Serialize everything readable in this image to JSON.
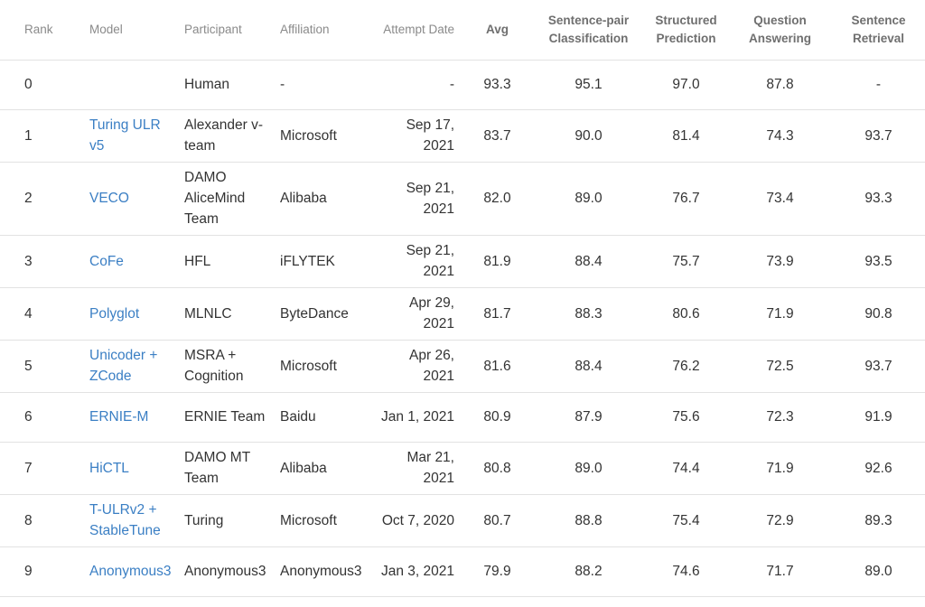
{
  "headers": {
    "rank": "Rank",
    "model": "Model",
    "participant": "Participant",
    "affiliation": "Affiliation",
    "attempt_date": "Attempt Date",
    "avg": "Avg",
    "spc_line1": "Sentence-pair",
    "spc_line2": "Classification",
    "sp_line1": "Structured",
    "sp_line2": "Prediction",
    "qa_line1": "Question",
    "qa_line2": "Answering",
    "sr_line1": "Sentence",
    "sr_line2": "Retrieval"
  },
  "rows": [
    {
      "rank": "0",
      "model": "",
      "participant": "Human",
      "affiliation": "-",
      "date": "-",
      "avg": "93.3",
      "spc": "95.1",
      "sp": "97.0",
      "qa": "87.8",
      "sr": "-"
    },
    {
      "rank": "1",
      "model": "Turing ULR v5",
      "participant": "Alexander v-team",
      "affiliation": "Microsoft",
      "date": "Sep 17, 2021",
      "avg": "83.7",
      "spc": "90.0",
      "sp": "81.4",
      "qa": "74.3",
      "sr": "93.7"
    },
    {
      "rank": "2",
      "model": "VECO",
      "participant": "DAMO AliceMind Team",
      "affiliation": "Alibaba",
      "date": "Sep 21, 2021",
      "avg": "82.0",
      "spc": "89.0",
      "sp": "76.7",
      "qa": "73.4",
      "sr": "93.3"
    },
    {
      "rank": "3",
      "model": "CoFe",
      "participant": "HFL",
      "affiliation": "iFLYTEK",
      "date": "Sep 21, 2021",
      "avg": "81.9",
      "spc": "88.4",
      "sp": "75.7",
      "qa": "73.9",
      "sr": "93.5"
    },
    {
      "rank": "4",
      "model": "Polyglot",
      "participant": "MLNLC",
      "affiliation": "ByteDance",
      "date": "Apr 29, 2021",
      "avg": "81.7",
      "spc": "88.3",
      "sp": "80.6",
      "qa": "71.9",
      "sr": "90.8"
    },
    {
      "rank": "5",
      "model": "Unicoder + ZCode",
      "participant": "MSRA + Cognition",
      "affiliation": "Microsoft",
      "date": "Apr 26, 2021",
      "avg": "81.6",
      "spc": "88.4",
      "sp": "76.2",
      "qa": "72.5",
      "sr": "93.7"
    },
    {
      "rank": "6",
      "model": "ERNIE-M",
      "participant": "ERNIE Team",
      "affiliation": "Baidu",
      "date": "Jan 1, 2021",
      "avg": "80.9",
      "spc": "87.9",
      "sp": "75.6",
      "qa": "72.3",
      "sr": "91.9"
    },
    {
      "rank": "7",
      "model": "HiCTL",
      "participant": "DAMO MT Team",
      "affiliation": "Alibaba",
      "date": "Mar 21, 2021",
      "avg": "80.8",
      "spc": "89.0",
      "sp": "74.4",
      "qa": "71.9",
      "sr": "92.6"
    },
    {
      "rank": "8",
      "model": "T-ULRv2 + StableTune",
      "participant": "Turing",
      "affiliation": "Microsoft",
      "date": "Oct 7, 2020",
      "avg": "80.7",
      "spc": "88.8",
      "sp": "75.4",
      "qa": "72.9",
      "sr": "89.3"
    },
    {
      "rank": "9",
      "model": "Anonymous3",
      "participant": "Anonymous3",
      "affiliation": "Anonymous3",
      "date": "Jan 3, 2021",
      "avg": "79.9",
      "spc": "88.2",
      "sp": "74.6",
      "qa": "71.7",
      "sr": "89.0"
    }
  ],
  "colors": {
    "link": "#3b7fc4",
    "header_text": "#8a8a8a",
    "body_text": "#333333",
    "divider": "#e2e2e2"
  }
}
